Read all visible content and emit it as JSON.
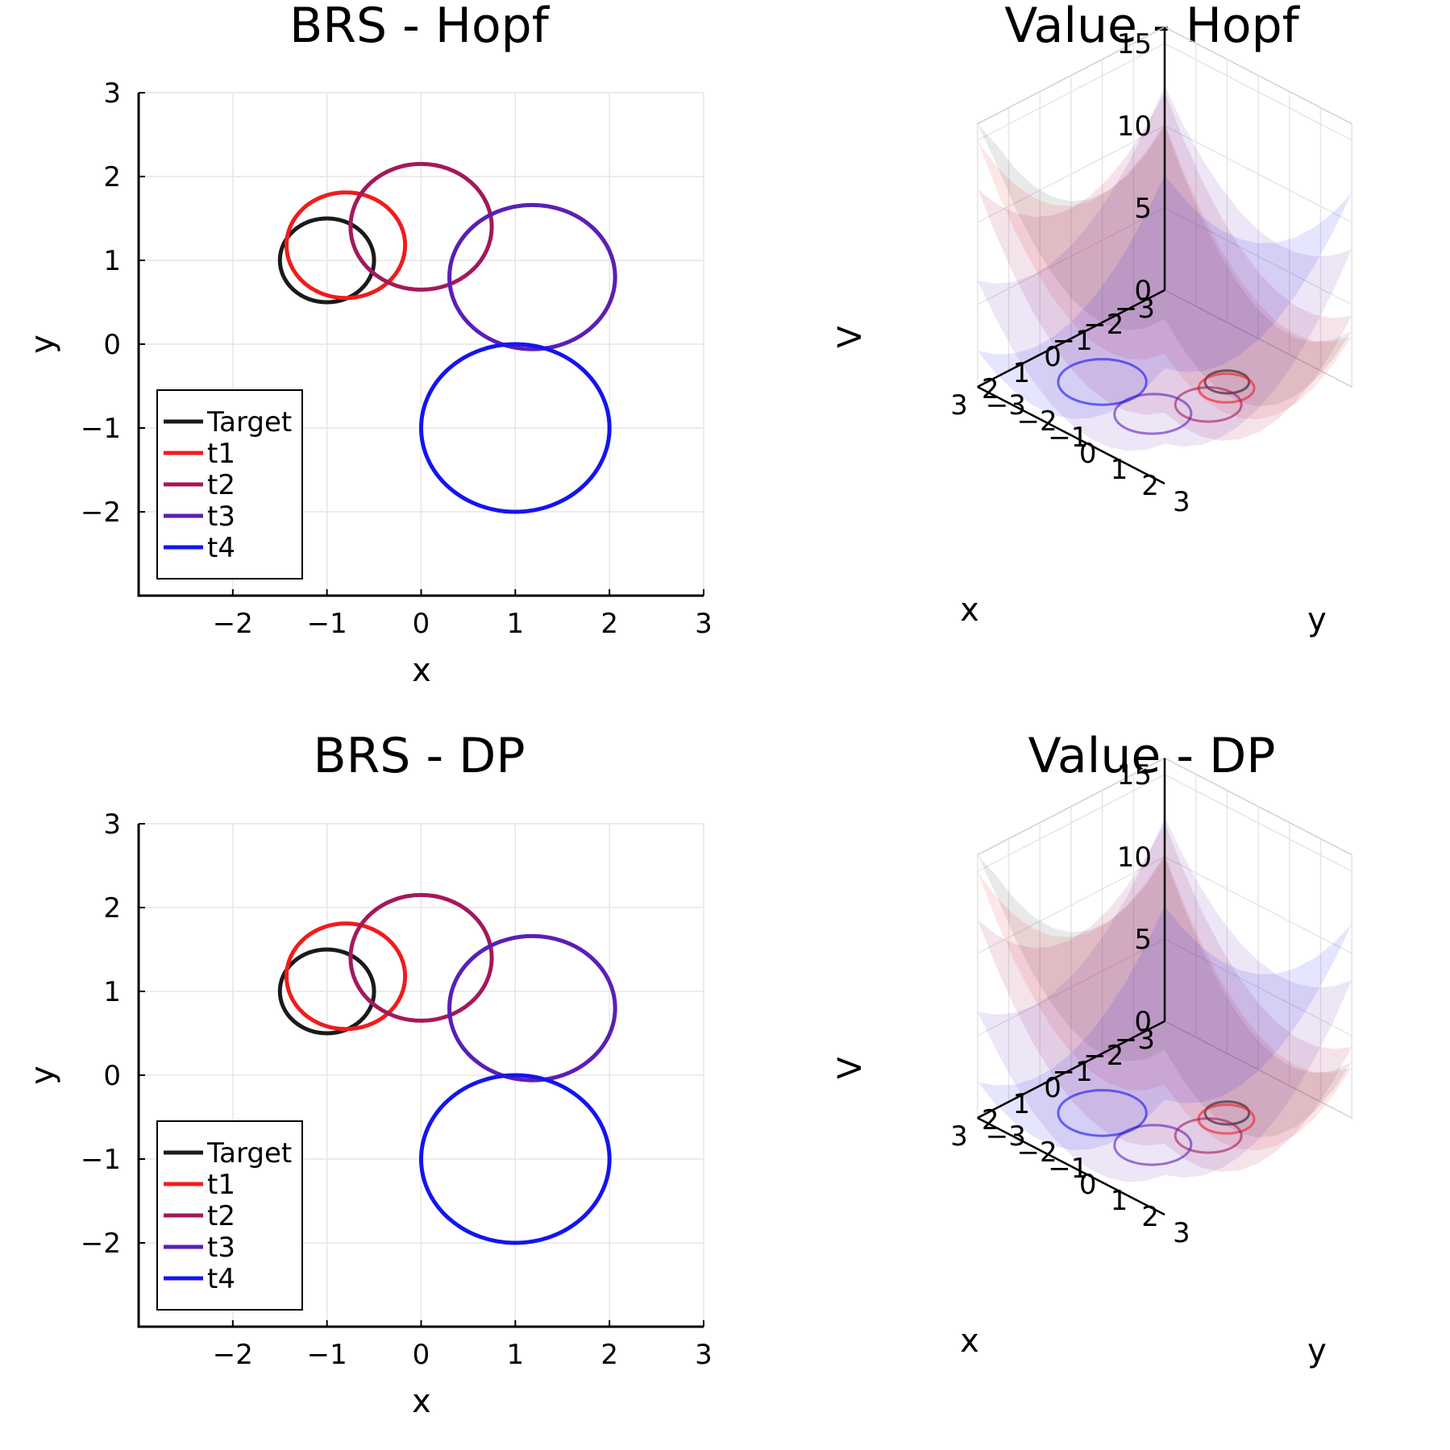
{
  "figure": {
    "layout": "2x2 grid"
  },
  "chart_data": [
    {
      "type": "line",
      "title": "BRS - Hopf",
      "xlabel": "x",
      "ylabel": "y",
      "xlim": [
        -3,
        3
      ],
      "ylim": [
        -3,
        3
      ],
      "xticks": [
        "−2",
        "−1",
        "0",
        "1",
        "2",
        "3"
      ],
      "yticks": [
        "−2",
        "−1",
        "0",
        "1",
        "2",
        "3"
      ],
      "xtick_values": [
        -2,
        -1,
        0,
        1,
        2,
        3
      ],
      "ytick_values": [
        -2,
        -1,
        0,
        1,
        2,
        3
      ],
      "grid": true,
      "legend_position": "bottom-left",
      "series": [
        {
          "name": "Target",
          "color": "#1a1a1a",
          "center": [
            -1.0,
            1.0
          ],
          "radii": [
            0.5,
            0.5
          ]
        },
        {
          "name": "t1",
          "color": "#f01c1c",
          "center": [
            -0.8,
            1.18
          ],
          "radii": [
            0.63,
            0.63
          ]
        },
        {
          "name": "t2",
          "color": "#a3195b",
          "center": [
            0.0,
            1.4
          ],
          "radii": [
            0.75,
            0.75
          ]
        },
        {
          "name": "t3",
          "color": "#5a1fb6",
          "center": [
            1.18,
            0.8
          ],
          "radii": [
            0.88,
            0.86
          ]
        },
        {
          "name": "t4",
          "color": "#1414f0",
          "center": [
            1.0,
            -1.0
          ],
          "radii": [
            1.0,
            1.0
          ]
        }
      ]
    },
    {
      "type": "surface",
      "title": "Value - Hopf",
      "xlabel": "x",
      "ylabel": "y",
      "zlabel": "V",
      "xticks": [
        "−3",
        "−2",
        "−1",
        "0",
        "1",
        "2",
        "3"
      ],
      "yticks": [
        "−3",
        "−2",
        "−1",
        "0",
        "1",
        "2",
        "3"
      ],
      "zticks": [
        "0",
        "5",
        "10",
        "15"
      ],
      "zlim": [
        0,
        16
      ],
      "surface_colors": [
        "#1a1a1a",
        "#f01c1c",
        "#a3195b",
        "#5a1fb6",
        "#1414f0"
      ]
    },
    {
      "type": "line",
      "title": "BRS - DP",
      "xlabel": "x",
      "ylabel": "y",
      "xlim": [
        -3,
        3
      ],
      "ylim": [
        -3,
        3
      ],
      "xticks": [
        "−2",
        "−1",
        "0",
        "1",
        "2",
        "3"
      ],
      "yticks": [
        "−2",
        "−1",
        "0",
        "1",
        "2",
        "3"
      ],
      "xtick_values": [
        -2,
        -1,
        0,
        1,
        2,
        3
      ],
      "ytick_values": [
        -2,
        -1,
        0,
        1,
        2,
        3
      ],
      "grid": true,
      "legend_position": "bottom-left",
      "series": [
        {
          "name": "Target",
          "color": "#1a1a1a",
          "center": [
            -1.0,
            1.0
          ],
          "radii": [
            0.5,
            0.5
          ]
        },
        {
          "name": "t1",
          "color": "#f01c1c",
          "center": [
            -0.8,
            1.18
          ],
          "radii": [
            0.63,
            0.63
          ]
        },
        {
          "name": "t2",
          "color": "#a3195b",
          "center": [
            0.0,
            1.4
          ],
          "radii": [
            0.75,
            0.75
          ]
        },
        {
          "name": "t3",
          "color": "#5a1fb6",
          "center": [
            1.18,
            0.8
          ],
          "radii": [
            0.88,
            0.86
          ]
        },
        {
          "name": "t4",
          "color": "#1414f0",
          "center": [
            1.0,
            -1.0
          ],
          "radii": [
            1.0,
            1.0
          ]
        }
      ]
    },
    {
      "type": "surface",
      "title": "Value - DP",
      "xlabel": "x",
      "ylabel": "y",
      "zlabel": "V",
      "xticks": [
        "−3",
        "−2",
        "−1",
        "0",
        "1",
        "2",
        "3"
      ],
      "yticks": [
        "−3",
        "−2",
        "−1",
        "0",
        "1",
        "2",
        "3"
      ],
      "zticks": [
        "0",
        "5",
        "10",
        "15"
      ],
      "zlim": [
        0,
        16
      ],
      "surface_colors": [
        "#1a1a1a",
        "#f01c1c",
        "#a3195b",
        "#5a1fb6",
        "#1414f0"
      ]
    }
  ]
}
